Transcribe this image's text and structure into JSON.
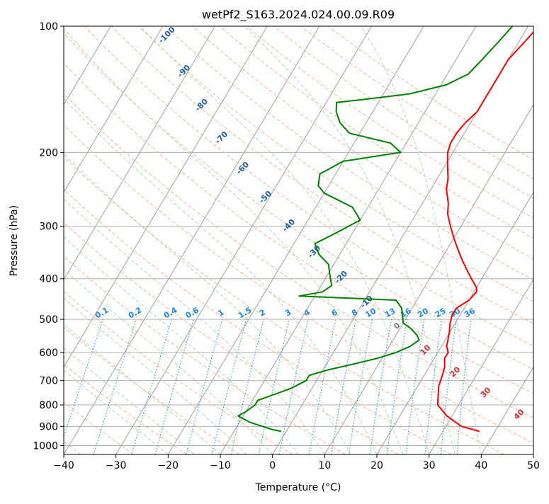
{
  "chart_data": {
    "type": "line",
    "subtype": "skew-t",
    "title": "wetPf2_S163.2024.024.00.09.R09",
    "xlabel": "Temperature (°C)",
    "ylabel": "Pressure (hPa)",
    "xlim": [
      -40,
      50
    ],
    "ylim": [
      1050,
      100
    ],
    "y_scale": "log",
    "x_ticks": [
      -40,
      -30,
      -20,
      -10,
      0,
      10,
      20,
      30,
      40,
      50
    ],
    "y_ticks": [
      100,
      200,
      300,
      400,
      500,
      600,
      700,
      800,
      900,
      1000
    ],
    "grid": true,
    "skew_isotherms": [
      -80,
      -70,
      -60,
      -50,
      -40,
      -30,
      -20,
      -10,
      0,
      10,
      20,
      30,
      40,
      50
    ],
    "dry_adiabat_labels": [
      "-100",
      "-90",
      "-80",
      "-70",
      "-60",
      "-50",
      "-40",
      "-30",
      "-20",
      "-10",
      "0",
      "10",
      "20",
      "30",
      "40"
    ],
    "mixing_ratio_labels": [
      "0.1",
      "0.2",
      "0.4",
      "0.6",
      "1",
      "1.5",
      "2",
      "3",
      "4",
      "6",
      "8",
      "10",
      "13",
      "16",
      "20",
      "25",
      "30",
      "36"
    ],
    "colors": {
      "temperature": "#ff0000",
      "dewpoint": "#008000",
      "dry_adiabat": "#f4a582",
      "moist_adiabat": "#a6d8a6",
      "mixing_ratio": "#1e88e5",
      "isotherm": "#999999"
    },
    "series": [
      {
        "key": "temperature",
        "color": "#ff0000",
        "points": [
          [
            37,
            925
          ],
          [
            33,
            900
          ],
          [
            29,
            850
          ],
          [
            26,
            800
          ],
          [
            25,
            760
          ],
          [
            24,
            720
          ],
          [
            23.5,
            680
          ],
          [
            23,
            650
          ],
          [
            22,
            620
          ],
          [
            22,
            600
          ],
          [
            21,
            580
          ],
          [
            20.5,
            560
          ],
          [
            20,
            540
          ],
          [
            19,
            510
          ],
          [
            18.5,
            490
          ],
          [
            18.5,
            470
          ],
          [
            20,
            450
          ],
          [
            20.5,
            430
          ],
          [
            20,
            420
          ],
          [
            18,
            400
          ],
          [
            16,
            380
          ],
          [
            14,
            360
          ],
          [
            12,
            340
          ],
          [
            10,
            320
          ],
          [
            8,
            300
          ],
          [
            6,
            280
          ],
          [
            5,
            265
          ],
          [
            3,
            245
          ],
          [
            2,
            230
          ],
          [
            1,
            220
          ],
          [
            0,
            210
          ],
          [
            -1,
            200
          ],
          [
            -1.5,
            190
          ],
          [
            -1.5,
            180
          ],
          [
            -1,
            170
          ],
          [
            0,
            160
          ],
          [
            0,
            150
          ],
          [
            0,
            140
          ],
          [
            0,
            130
          ],
          [
            0,
            120
          ],
          [
            1,
            110
          ],
          [
            2,
            100
          ]
        ]
      },
      {
        "key": "dewpoint",
        "color": "#008000",
        "points": [
          [
            -1,
            925
          ],
          [
            -3,
            915
          ],
          [
            -8,
            880
          ],
          [
            -11,
            850
          ],
          [
            -10,
            830
          ],
          [
            -9,
            800
          ],
          [
            -9,
            780
          ],
          [
            -7,
            760
          ],
          [
            -6,
            750
          ],
          [
            -4,
            730
          ],
          [
            -2,
            700
          ],
          [
            -2,
            680
          ],
          [
            1,
            660
          ],
          [
            5,
            640
          ],
          [
            9,
            620
          ],
          [
            12,
            600
          ],
          [
            14,
            580
          ],
          [
            15,
            560
          ],
          [
            14,
            545
          ],
          [
            12,
            525
          ],
          [
            10,
            510
          ],
          [
            9,
            490
          ],
          [
            8,
            470
          ],
          [
            6,
            450
          ],
          [
            -13,
            440
          ],
          [
            -9,
            430
          ],
          [
            -8,
            415
          ],
          [
            -9,
            400
          ],
          [
            -10,
            385
          ],
          [
            -11,
            370
          ],
          [
            -14,
            350
          ],
          [
            -16,
            330
          ],
          [
            -13,
            310
          ],
          [
            -10,
            290
          ],
          [
            -13,
            270
          ],
          [
            -20,
            250
          ],
          [
            -22,
            240
          ],
          [
            -23,
            225
          ],
          [
            -20,
            210
          ],
          [
            -10,
            200
          ],
          [
            -13,
            190
          ],
          [
            -22,
            180
          ],
          [
            -25,
            170
          ],
          [
            -27,
            160
          ],
          [
            -28,
            152
          ],
          [
            -24,
            150
          ],
          [
            -15,
            145
          ],
          [
            -9,
            138
          ],
          [
            -6,
            130
          ],
          [
            -5,
            120
          ],
          [
            -4,
            110
          ],
          [
            -3,
            100
          ]
        ]
      }
    ]
  }
}
